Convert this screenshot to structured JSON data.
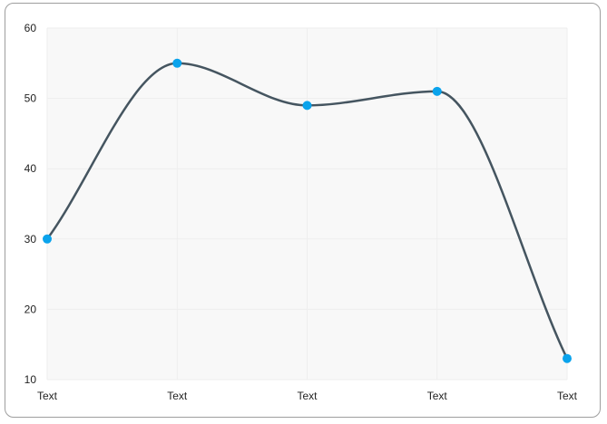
{
  "chart_data": {
    "type": "line",
    "categories": [
      "Text",
      "Text",
      "Text",
      "Text",
      "Text"
    ],
    "series": [
      {
        "values": [
          30,
          55,
          49,
          51,
          13
        ]
      }
    ],
    "ylim": [
      10,
      60
    ],
    "yticks": [
      10,
      20,
      30,
      40,
      50,
      60
    ],
    "grid": true,
    "smooth": true,
    "colors": {
      "line": "#455560",
      "marker": "#0aa3ec",
      "plot_background": "#f8f8f8",
      "grid": "#eeeeee"
    }
  }
}
